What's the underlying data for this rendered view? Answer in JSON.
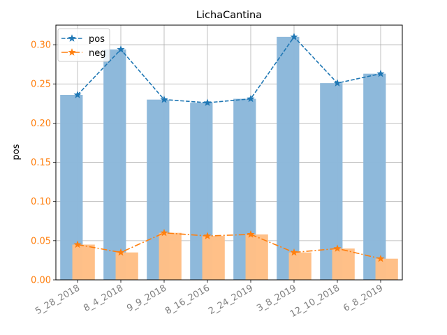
{
  "chart_data": {
    "type": "bar",
    "title": "LichaCantina",
    "xlabel": "",
    "ylabel": "pos",
    "categories": [
      "5_28_2018",
      "8_4_2018",
      "9_9_2018",
      "8_16_2016",
      "2_24_2019",
      "3_8_2019",
      "12_10_2018",
      "6_8_2019"
    ],
    "series": [
      {
        "name": "pos",
        "values": [
          0.236,
          0.294,
          0.23,
          0.226,
          0.231,
          0.31,
          0.251,
          0.263
        ],
        "color": "#1f77b4",
        "bar_color": "#8cb8da",
        "line_style": "dashed",
        "marker": "star"
      },
      {
        "name": "neg",
        "values": [
          0.045,
          0.035,
          0.06,
          0.056,
          0.058,
          0.035,
          0.04,
          0.027
        ],
        "color": "#ff7f0e",
        "bar_color": "#ffbf86",
        "line_style": "dash-dot",
        "marker": "star"
      }
    ],
    "yticks": [
      "0.00",
      "0.05",
      "0.10",
      "0.15",
      "0.20",
      "0.25",
      "0.30"
    ],
    "ylim": [
      0,
      0.325
    ],
    "grid": true,
    "legend": "top-left",
    "tick_label_color": "#ff7f0e",
    "x_tick_label_color": "#808080"
  }
}
